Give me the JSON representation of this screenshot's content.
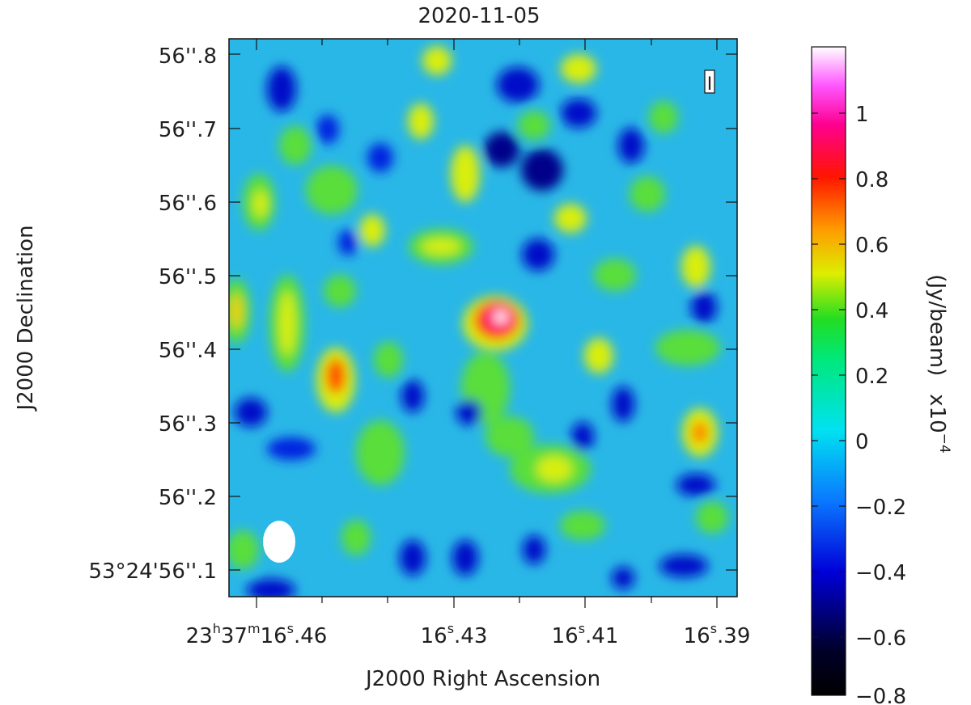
{
  "title": "2020-11-05",
  "x_axis_label": "J2000 Right Ascension",
  "y_axis_label": "J2000 Declination",
  "x_ticks": [
    {
      "h": "23",
      "hs": "h",
      "m": "37",
      "ms": "m",
      "s": "16",
      "ss": "s",
      ".46": ".46"
    },
    {
      "s": "16",
      "ss": "s",
      "frac": ".43"
    },
    {
      "s": "16",
      "ss": "s",
      "frac": ".41"
    },
    {
      "s": "16",
      "ss": "s",
      "frac": ".39"
    }
  ],
  "x_tick_text": {
    "t1_prefix": "23",
    "t1_h": "h",
    "t1_min": "37",
    "t1_m": "m",
    "t1_sec": "16",
    "t1_s": "s",
    "t1_frac": ".46",
    "t2_sec": "16",
    "t2_s": "s",
    "t2_frac": ".43",
    "t3_sec": "16",
    "t3_s": "s",
    "t3_frac": ".41",
    "t4_sec": "16",
    "t4_s": "s",
    "t4_frac": ".39"
  },
  "y_ticks": [
    "56''.8",
    "56''.7",
    "56''.6",
    "56''.5",
    "56''.4",
    "56''.3",
    "56''.2",
    "53°24'56''.1"
  ],
  "stokes_label": "I",
  "colorbar": {
    "label": "(Jy/beam)",
    "scale_prefix": "x10",
    "scale_exp": "−4",
    "ticks": [
      "1",
      "0.8",
      "0.6",
      "0.4",
      "0.2",
      "0",
      "−0.2",
      "−0.4",
      "−0.6",
      "−0.8"
    ]
  }
}
